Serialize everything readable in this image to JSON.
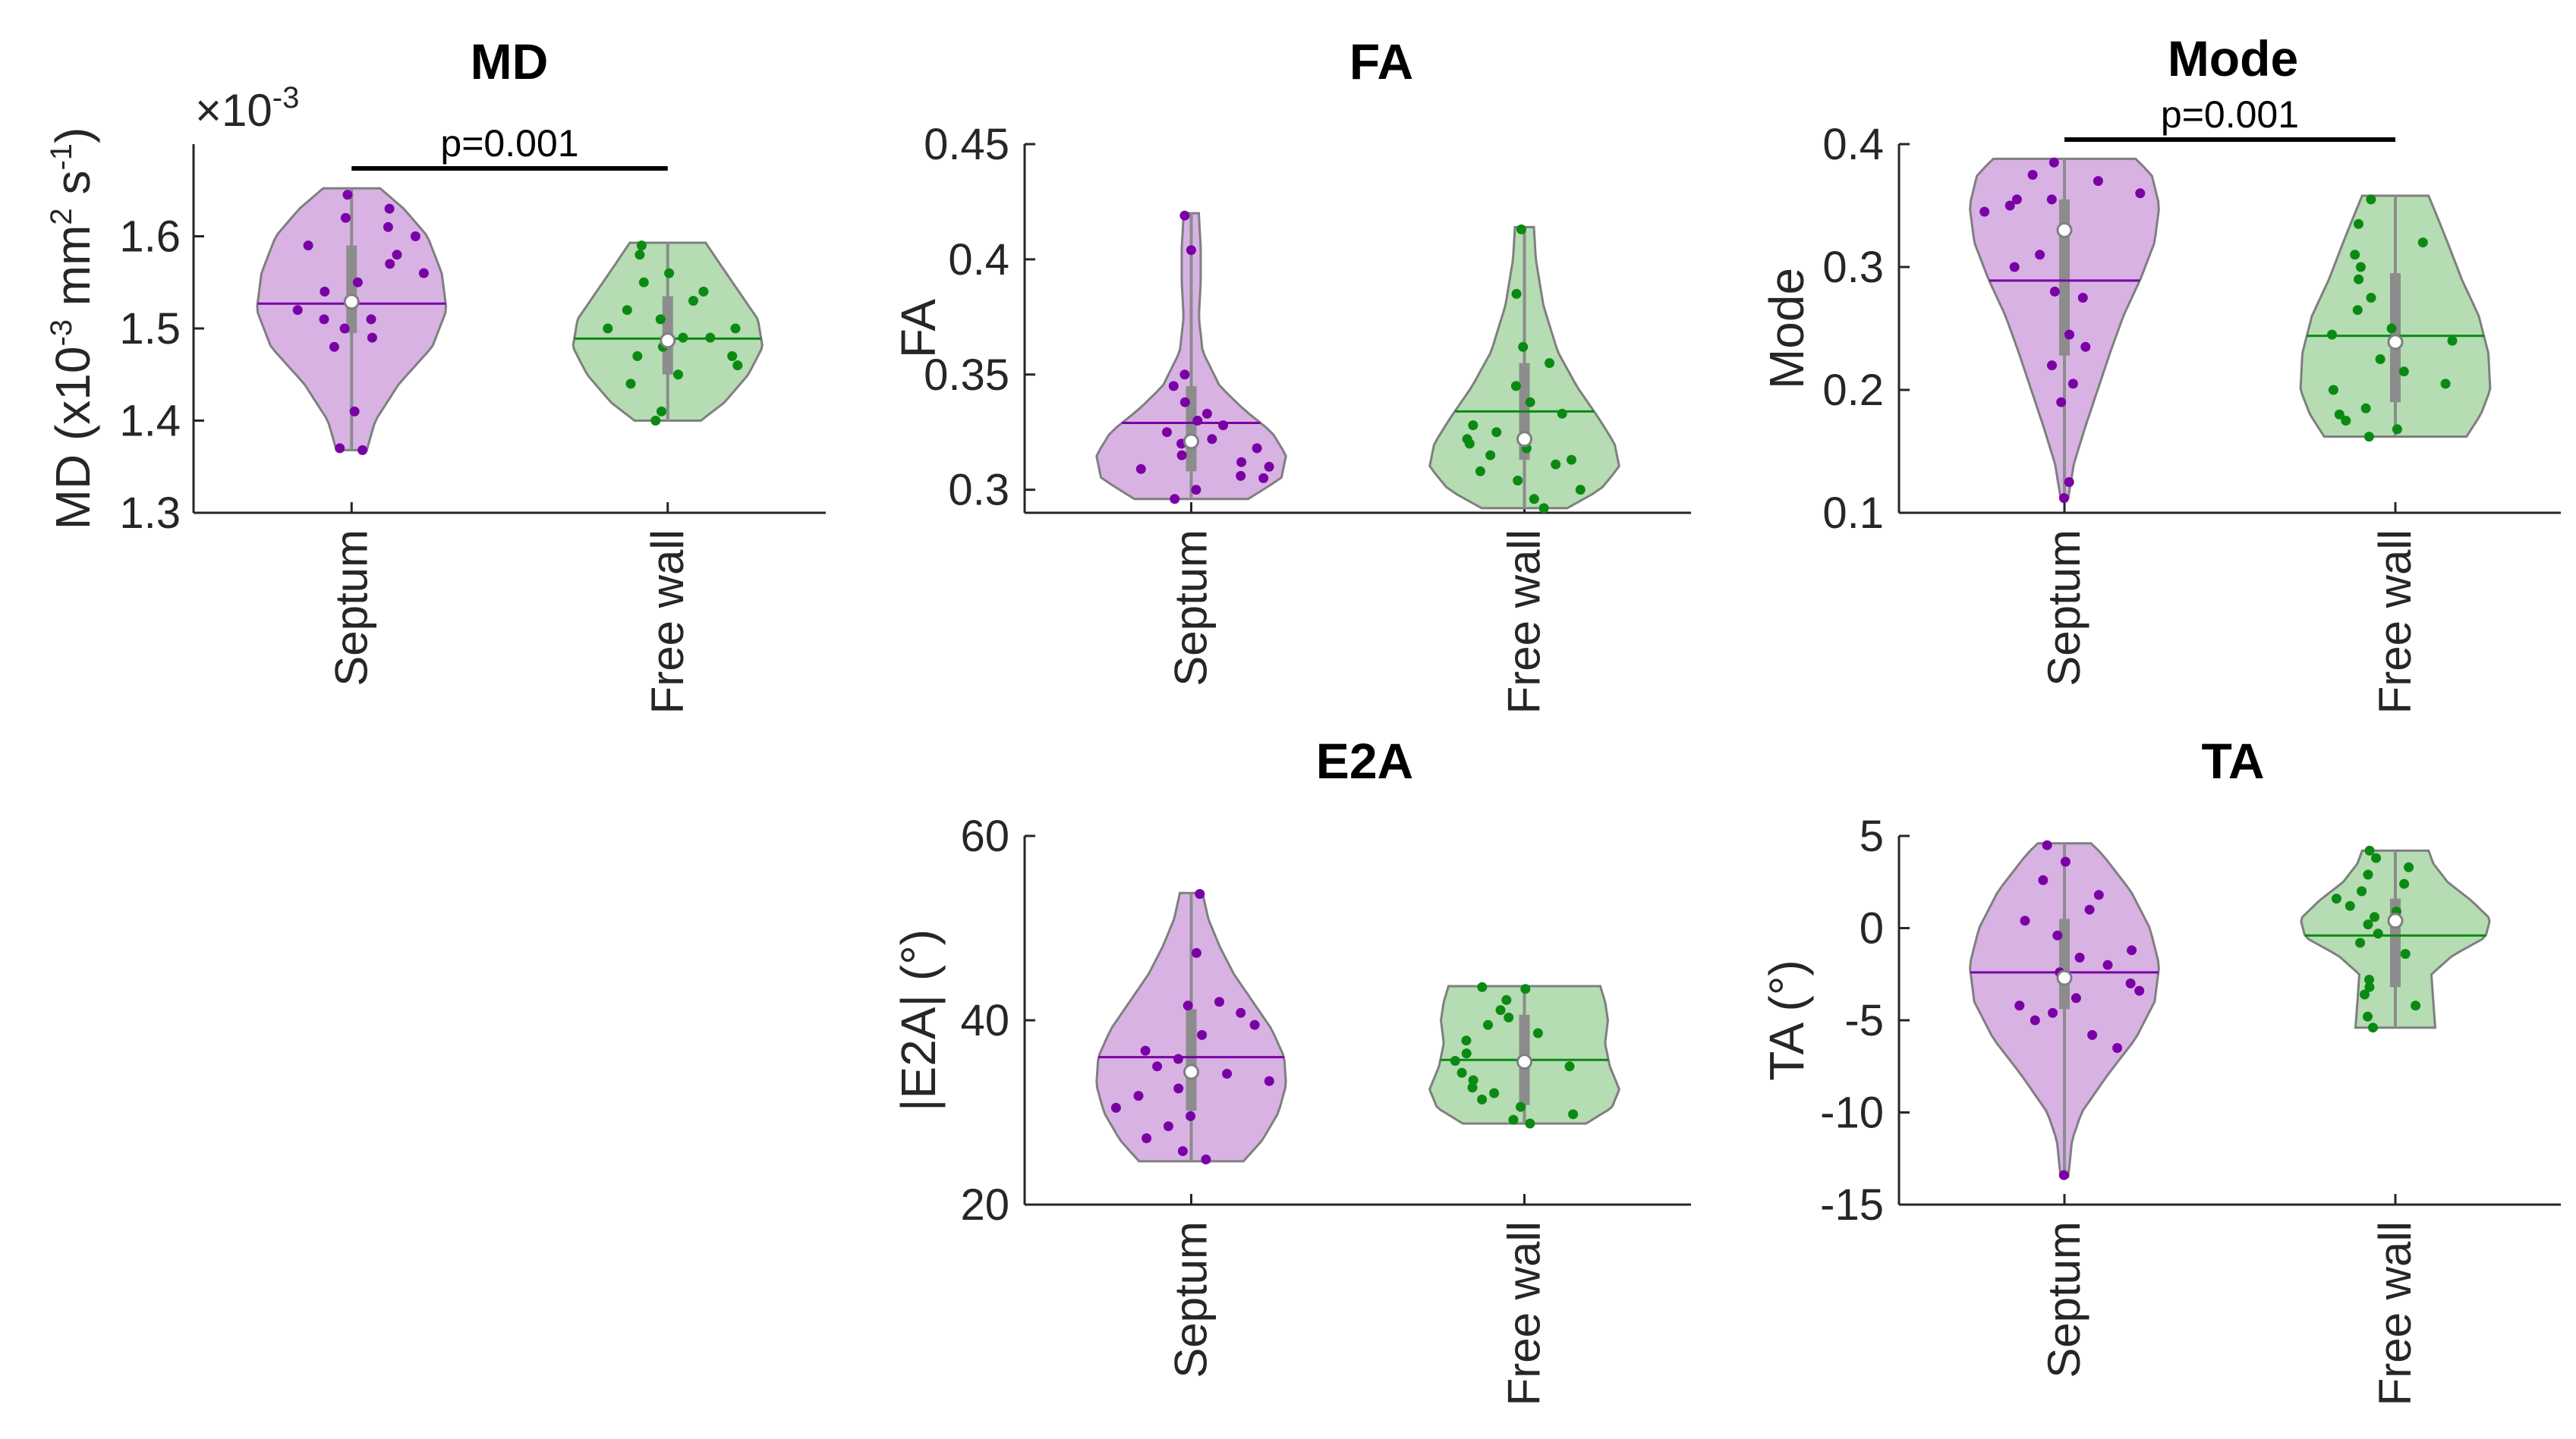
{
  "chart_data": [
    {
      "type": "violin",
      "title": "MD",
      "ylabel": "MD (x10-3 mm2 s-1)",
      "ylabel_parts": {
        "pre": "MD (x10",
        "e1": "-3",
        "mid": " mm",
        "e2": "2",
        "mid2": " s",
        "e3": "-1",
        "post": ")"
      },
      "exponent": {
        "base": "×10",
        "power": "-3"
      },
      "ylim": [
        1.3,
        1.7
      ],
      "yticks": [
        1.3,
        1.4,
        1.5,
        1.6
      ],
      "categories": [
        "Septum",
        "Free wall"
      ],
      "significance": {
        "from": 0,
        "to": 1,
        "label": "p=0.001"
      },
      "series": [
        {
          "category": "Septum",
          "color": "#7a00a6",
          "fill": "#d8b2e3",
          "range": [
            1.368,
            1.652
          ],
          "mean": 1.527,
          "median": 1.529,
          "q1": 1.495,
          "q3": 1.59,
          "density": [
            [
              1.368,
              0.16
            ],
            [
              1.4,
              0.25
            ],
            [
              1.44,
              0.5
            ],
            [
              1.48,
              0.85
            ],
            [
              1.52,
              1.0
            ],
            [
              1.56,
              0.95
            ],
            [
              1.6,
              0.8
            ],
            [
              1.63,
              0.55
            ],
            [
              1.652,
              0.3
            ]
          ],
          "points": [
            1.368,
            1.37,
            1.41,
            1.48,
            1.5,
            1.51,
            1.52,
            1.54,
            1.55,
            1.56,
            1.58,
            1.59,
            1.6,
            1.61,
            1.62,
            1.63,
            1.645,
            1.49,
            1.51,
            1.57
          ]
        },
        {
          "category": "Free wall",
          "color": "#0a8a12",
          "fill": "#b5dcb2",
          "range": [
            1.4,
            1.593
          ],
          "mean": 1.489,
          "median": 1.487,
          "q1": 1.45,
          "q3": 1.535,
          "density": [
            [
              1.4,
              0.35
            ],
            [
              1.42,
              0.6
            ],
            [
              1.45,
              0.85
            ],
            [
              1.48,
              1.0
            ],
            [
              1.51,
              0.95
            ],
            [
              1.54,
              0.75
            ],
            [
              1.57,
              0.55
            ],
            [
              1.593,
              0.4
            ]
          ],
          "points": [
            1.4,
            1.41,
            1.44,
            1.45,
            1.46,
            1.47,
            1.48,
            1.49,
            1.49,
            1.5,
            1.51,
            1.52,
            1.53,
            1.54,
            1.55,
            1.56,
            1.58,
            1.59,
            1.47,
            1.5
          ]
        }
      ]
    },
    {
      "type": "violin",
      "title": "FA",
      "ylabel": "FA",
      "ylim": [
        0.29,
        0.45
      ],
      "yticks": [
        0.3,
        0.35,
        0.4,
        0.45
      ],
      "categories": [
        "Septum",
        "Free wall"
      ],
      "series": [
        {
          "category": "Septum",
          "color": "#7a00a6",
          "fill": "#d8b2e3",
          "range": [
            0.296,
            0.42
          ],
          "mean": 0.329,
          "median": 0.321,
          "q1": 0.308,
          "q3": 0.345,
          "density": [
            [
              0.296,
              0.6
            ],
            [
              0.305,
              0.95
            ],
            [
              0.315,
              1.0
            ],
            [
              0.325,
              0.85
            ],
            [
              0.335,
              0.55
            ],
            [
              0.345,
              0.3
            ],
            [
              0.36,
              0.12
            ],
            [
              0.375,
              0.08
            ],
            [
              0.39,
              0.1
            ],
            [
              0.405,
              0.1
            ],
            [
              0.42,
              0.08
            ]
          ],
          "points": [
            0.296,
            0.3,
            0.305,
            0.306,
            0.309,
            0.31,
            0.312,
            0.315,
            0.318,
            0.32,
            0.322,
            0.325,
            0.328,
            0.33,
            0.333,
            0.338,
            0.345,
            0.35,
            0.404,
            0.419
          ]
        },
        {
          "category": "Free wall",
          "color": "#0a8a12",
          "fill": "#b5dcb2",
          "range": [
            0.292,
            0.414
          ],
          "mean": 0.334,
          "median": 0.322,
          "q1": 0.313,
          "q3": 0.355,
          "density": [
            [
              0.292,
              0.45
            ],
            [
              0.3,
              0.8
            ],
            [
              0.31,
              1.0
            ],
            [
              0.32,
              0.95
            ],
            [
              0.33,
              0.8
            ],
            [
              0.345,
              0.55
            ],
            [
              0.36,
              0.35
            ],
            [
              0.38,
              0.2
            ],
            [
              0.4,
              0.12
            ],
            [
              0.414,
              0.1
            ]
          ],
          "points": [
            0.292,
            0.296,
            0.3,
            0.304,
            0.308,
            0.311,
            0.313,
            0.315,
            0.318,
            0.32,
            0.322,
            0.325,
            0.328,
            0.333,
            0.338,
            0.345,
            0.355,
            0.362,
            0.385,
            0.413
          ]
        }
      ]
    },
    {
      "type": "violin",
      "title": "Mode",
      "ylabel": "Mode",
      "ylim": [
        0.1,
        0.4
      ],
      "yticks": [
        0.1,
        0.2,
        0.3,
        0.4
      ],
      "categories": [
        "Septum",
        "Free wall"
      ],
      "significance": {
        "from": 0,
        "to": 1,
        "label": "p=0.001"
      },
      "series": [
        {
          "category": "Septum",
          "color": "#7a00a6",
          "fill": "#d8b2e3",
          "range": [
            0.112,
            0.388
          ],
          "mean": 0.289,
          "median": 0.33,
          "q1": 0.228,
          "q3": 0.355,
          "density": [
            [
              0.112,
              0.04
            ],
            [
              0.14,
              0.1
            ],
            [
              0.17,
              0.22
            ],
            [
              0.2,
              0.35
            ],
            [
              0.23,
              0.48
            ],
            [
              0.26,
              0.62
            ],
            [
              0.29,
              0.8
            ],
            [
              0.32,
              0.95
            ],
            [
              0.35,
              1.0
            ],
            [
              0.375,
              0.92
            ],
            [
              0.388,
              0.75
            ]
          ],
          "points": [
            0.112,
            0.125,
            0.19,
            0.205,
            0.22,
            0.235,
            0.245,
            0.275,
            0.28,
            0.3,
            0.31,
            0.33,
            0.345,
            0.35,
            0.355,
            0.36,
            0.37,
            0.375,
            0.385,
            0.355
          ]
        },
        {
          "category": "Free wall",
          "color": "#0a8a12",
          "fill": "#b5dcb2",
          "range": [
            0.162,
            0.358
          ],
          "mean": 0.244,
          "median": 0.239,
          "q1": 0.19,
          "q3": 0.295,
          "density": [
            [
              0.162,
              0.75
            ],
            [
              0.18,
              0.9
            ],
            [
              0.2,
              1.0
            ],
            [
              0.23,
              0.98
            ],
            [
              0.26,
              0.88
            ],
            [
              0.29,
              0.7
            ],
            [
              0.32,
              0.55
            ],
            [
              0.345,
              0.42
            ],
            [
              0.358,
              0.35
            ]
          ],
          "points": [
            0.162,
            0.168,
            0.175,
            0.18,
            0.185,
            0.2,
            0.205,
            0.215,
            0.225,
            0.24,
            0.25,
            0.265,
            0.275,
            0.29,
            0.3,
            0.31,
            0.32,
            0.335,
            0.355,
            0.245
          ]
        }
      ]
    },
    {
      "type": "violin",
      "title": "E2A",
      "ylabel": "|E2A| (°)",
      "ylim": [
        20,
        60
      ],
      "yticks": [
        20,
        40,
        60
      ],
      "categories": [
        "Septum",
        "Free wall"
      ],
      "series": [
        {
          "category": "Septum",
          "color": "#7a00a6",
          "fill": "#d8b2e3",
          "range": [
            24.7,
            53.8
          ],
          "mean": 36.0,
          "median": 34.4,
          "q1": 30.2,
          "q3": 41.2,
          "density": [
            [
              24.7,
              0.55
            ],
            [
              27,
              0.75
            ],
            [
              30,
              0.92
            ],
            [
              33,
              1.0
            ],
            [
              36,
              0.98
            ],
            [
              39,
              0.85
            ],
            [
              42,
              0.65
            ],
            [
              45,
              0.45
            ],
            [
              48,
              0.3
            ],
            [
              51,
              0.18
            ],
            [
              53.8,
              0.12
            ]
          ],
          "points": [
            24.9,
            25.8,
            27.2,
            28.5,
            29.6,
            30.5,
            31.8,
            32.6,
            33.4,
            34.2,
            35.0,
            35.8,
            36.7,
            38.4,
            39.5,
            40.8,
            41.6,
            42.0,
            47.3,
            53.7
          ]
        },
        {
          "category": "Free wall",
          "color": "#0a8a12",
          "fill": "#b5dcb2",
          "range": [
            28.8,
            43.7
          ],
          "mean": 35.7,
          "median": 35.5,
          "q1": 30.8,
          "q3": 40.6,
          "density": [
            [
              28.8,
              0.65
            ],
            [
              30.5,
              0.92
            ],
            [
              32.5,
              1.0
            ],
            [
              35,
              0.9
            ],
            [
              37.5,
              0.85
            ],
            [
              40,
              0.88
            ],
            [
              42,
              0.85
            ],
            [
              43.7,
              0.8
            ]
          ],
          "points": [
            28.8,
            29.2,
            29.8,
            30.6,
            31.4,
            32.1,
            32.7,
            33.5,
            34.3,
            35.0,
            35.6,
            36.4,
            37.8,
            38.6,
            39.5,
            40.3,
            41.1,
            42.2,
            43.4,
            43.6
          ]
        }
      ]
    },
    {
      "type": "violin",
      "title": "TA",
      "ylabel": "TA (°)",
      "ylim": [
        -15,
        5
      ],
      "yticks": [
        -15,
        -10,
        -5,
        0,
        5
      ],
      "categories": [
        "Septum",
        "Free wall"
      ],
      "series": [
        {
          "category": "Septum",
          "color": "#7a00a6",
          "fill": "#d8b2e3",
          "range": [
            -13.5,
            4.6
          ],
          "mean": -2.4,
          "median": -2.7,
          "q1": -4.4,
          "q3": 0.5,
          "density": [
            [
              -13.5,
              0.04
            ],
            [
              -11.5,
              0.08
            ],
            [
              -10,
              0.18
            ],
            [
              -8,
              0.45
            ],
            [
              -6,
              0.75
            ],
            [
              -4,
              0.95
            ],
            [
              -2,
              1.0
            ],
            [
              0,
              0.9
            ],
            [
              2,
              0.7
            ],
            [
              4,
              0.4
            ],
            [
              4.6,
              0.28
            ]
          ],
          "points": [
            -13.4,
            -6.5,
            -5.8,
            -5.0,
            -4.6,
            -4.2,
            -3.8,
            -3.4,
            -3.0,
            -2.4,
            -2.0,
            -1.6,
            -1.2,
            -0.4,
            0.4,
            1.0,
            1.8,
            2.6,
            3.6,
            4.5
          ]
        },
        {
          "category": "Free wall",
          "color": "#0a8a12",
          "fill": "#b5dcb2",
          "range": [
            -5.4,
            4.2
          ],
          "mean": -0.4,
          "median": 0.4,
          "q1": -3.2,
          "q3": 1.6,
          "density": [
            [
              -5.4,
              0.42
            ],
            [
              -4,
              0.4
            ],
            [
              -2.5,
              0.38
            ],
            [
              -1.5,
              0.6
            ],
            [
              -0.5,
              0.95
            ],
            [
              0.5,
              1.0
            ],
            [
              1.5,
              0.8
            ],
            [
              2.5,
              0.55
            ],
            [
              3.5,
              0.4
            ],
            [
              4.2,
              0.35
            ]
          ],
          "points": [
            -5.4,
            -4.8,
            -4.2,
            -3.6,
            -3.2,
            -2.8,
            -1.4,
            -0.8,
            -0.3,
            0.2,
            0.6,
            0.9,
            1.2,
            1.6,
            2.0,
            2.4,
            2.9,
            3.3,
            3.8,
            4.2
          ]
        }
      ]
    }
  ]
}
